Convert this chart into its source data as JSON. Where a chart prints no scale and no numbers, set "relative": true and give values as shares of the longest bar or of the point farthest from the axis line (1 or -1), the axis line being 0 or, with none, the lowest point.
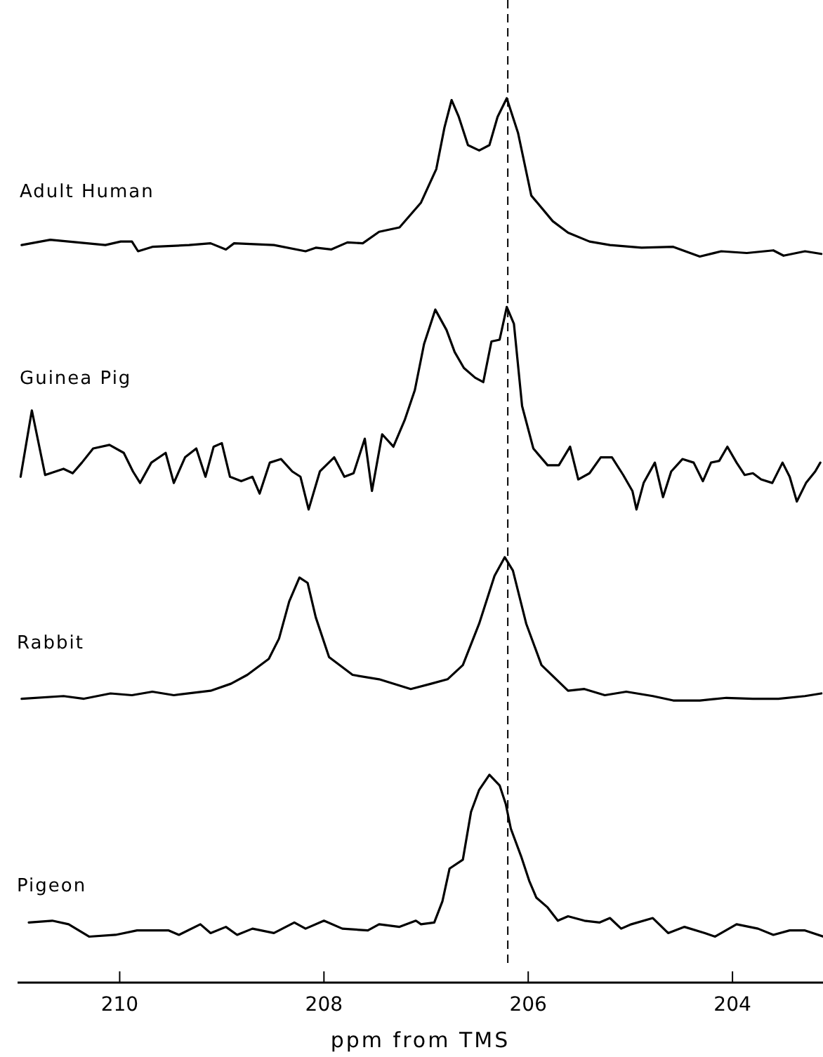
{
  "chart_data": {
    "type": "line",
    "relative": true,
    "xlim": [
      211.0,
      203.1
    ],
    "xticks": [
      210,
      208,
      206,
      204
    ],
    "xlabel": "ppm from TMS",
    "line_style": "solid",
    "marker": "none",
    "series": [
      {
        "name": "Adult Human",
        "color": "#000000",
        "x": [
          210.96,
          210.68,
          210.14,
          209.99,
          209.88,
          209.82,
          209.68,
          209.32,
          209.11,
          208.96,
          208.88,
          208.49,
          208.18,
          208.08,
          207.93,
          207.77,
          207.62,
          207.46,
          207.26,
          207.05,
          206.9,
          206.82,
          206.75,
          206.68,
          206.59,
          206.48,
          206.38,
          206.3,
          206.21,
          206.1,
          205.97,
          205.76,
          205.61,
          205.4,
          205.2,
          204.89,
          204.58,
          204.32,
          204.11,
          203.86,
          203.6,
          203.5,
          203.29,
          203.13
        ],
        "values": [
          0.834,
          0.84,
          0.834,
          0.838,
          0.838,
          0.827,
          0.832,
          0.834,
          0.836,
          0.829,
          0.836,
          0.834,
          0.827,
          0.831,
          0.829,
          0.837,
          0.836,
          0.849,
          0.854,
          0.882,
          0.92,
          0.967,
          0.998,
          0.979,
          0.947,
          0.941,
          0.947,
          0.979,
          1,
          0.961,
          0.89,
          0.861,
          0.848,
          0.838,
          0.834,
          0.831,
          0.832,
          0.821,
          0.827,
          0.825,
          0.828,
          0.822,
          0.827,
          0.824
        ]
      },
      {
        "name": "Guinea Pig",
        "color": "#000000",
        "x": [
          210.97,
          210.86,
          210.73,
          210.55,
          210.46,
          210.37,
          210.26,
          210.1,
          209.96,
          209.87,
          209.8,
          209.69,
          209.55,
          209.47,
          209.36,
          209.25,
          209.16,
          209.08,
          209.0,
          208.92,
          208.81,
          208.7,
          208.63,
          208.53,
          208.42,
          208.31,
          208.23,
          208.15,
          208.04,
          207.9,
          207.8,
          207.71,
          207.6,
          207.53,
          207.43,
          207.32,
          207.21,
          207.11,
          207.02,
          206.91,
          206.8,
          206.72,
          206.63,
          206.52,
          206.44,
          206.36,
          206.28,
          206.21,
          206.14,
          206.06,
          205.95,
          205.81,
          205.7,
          205.59,
          205.51,
          205.4,
          205.29,
          205.18,
          205.07,
          204.98,
          204.94,
          204.87,
          204.76,
          204.68,
          204.6,
          204.49,
          204.38,
          204.29,
          204.21,
          204.13,
          204.05,
          203.96,
          203.88,
          203.8,
          203.72,
          203.61,
          203.51,
          203.44,
          203.37,
          203.28,
          203.19,
          203.14
        ],
        "values": [
          0.572,
          0.647,
          0.574,
          0.581,
          0.576,
          0.588,
          0.604,
          0.608,
          0.599,
          0.578,
          0.565,
          0.588,
          0.599,
          0.565,
          0.594,
          0.604,
          0.572,
          0.606,
          0.61,
          0.572,
          0.567,
          0.572,
          0.553,
          0.588,
          0.592,
          0.578,
          0.572,
          0.535,
          0.578,
          0.594,
          0.572,
          0.576,
          0.615,
          0.556,
          0.62,
          0.606,
          0.636,
          0.67,
          0.722,
          0.761,
          0.738,
          0.713,
          0.695,
          0.684,
          0.679,
          0.725,
          0.727,
          0.764,
          0.745,
          0.652,
          0.604,
          0.585,
          0.585,
          0.606,
          0.569,
          0.576,
          0.594,
          0.594,
          0.574,
          0.556,
          0.535,
          0.565,
          0.588,
          0.549,
          0.578,
          0.592,
          0.588,
          0.567,
          0.588,
          0.59,
          0.606,
          0.588,
          0.574,
          0.576,
          0.569,
          0.565,
          0.588,
          0.572,
          0.544,
          0.565,
          0.578,
          0.588
        ]
      },
      {
        "name": "Rabbit",
        "color": "#000000",
        "x": [
          210.96,
          210.55,
          210.35,
          210.09,
          209.88,
          209.68,
          209.47,
          209.11,
          208.91,
          208.75,
          208.54,
          208.44,
          208.34,
          208.24,
          208.16,
          208.08,
          207.95,
          207.72,
          207.46,
          207.15,
          206.95,
          206.79,
          206.64,
          206.48,
          206.33,
          206.23,
          206.15,
          206.02,
          205.87,
          205.61,
          205.45,
          205.25,
          205.04,
          204.78,
          204.58,
          204.32,
          204.06,
          203.8,
          203.55,
          203.29,
          203.13
        ],
        "values": [
          0.321,
          0.324,
          0.321,
          0.327,
          0.325,
          0.329,
          0.325,
          0.33,
          0.338,
          0.348,
          0.366,
          0.389,
          0.431,
          0.458,
          0.452,
          0.413,
          0.368,
          0.348,
          0.343,
          0.332,
          0.338,
          0.343,
          0.359,
          0.406,
          0.46,
          0.481,
          0.466,
          0.406,
          0.359,
          0.33,
          0.332,
          0.325,
          0.329,
          0.324,
          0.319,
          0.319,
          0.322,
          0.321,
          0.321,
          0.324,
          0.327
        ]
      },
      {
        "name": "Pigeon",
        "color": "#000000",
        "x": [
          210.89,
          210.66,
          210.5,
          210.3,
          210.04,
          209.83,
          209.52,
          209.42,
          209.21,
          209.11,
          208.96,
          208.85,
          208.7,
          208.49,
          208.29,
          208.18,
          208.0,
          207.82,
          207.57,
          207.46,
          207.26,
          207.1,
          207.05,
          206.92,
          206.84,
          206.77,
          206.64,
          206.56,
          206.48,
          206.38,
          206.28,
          206.22,
          206.17,
          206.07,
          205.99,
          205.92,
          205.81,
          205.71,
          205.61,
          205.45,
          205.3,
          205.2,
          205.09,
          204.99,
          204.78,
          204.63,
          204.47,
          204.27,
          204.17,
          203.96,
          203.75,
          203.6,
          203.44,
          203.29,
          203.11
        ],
        "values": [
          0.068,
          0.07,
          0.066,
          0.052,
          0.054,
          0.059,
          0.059,
          0.054,
          0.066,
          0.056,
          0.063,
          0.054,
          0.061,
          0.056,
          0.068,
          0.061,
          0.07,
          0.061,
          0.059,
          0.066,
          0.063,
          0.07,
          0.066,
          0.068,
          0.092,
          0.129,
          0.139,
          0.193,
          0.218,
          0.235,
          0.223,
          0.202,
          0.174,
          0.143,
          0.115,
          0.096,
          0.085,
          0.07,
          0.075,
          0.07,
          0.068,
          0.073,
          0.061,
          0.066,
          0.073,
          0.056,
          0.063,
          0.056,
          0.052,
          0.066,
          0.061,
          0.054,
          0.059,
          0.059,
          0.052
        ]
      }
    ],
    "ref_lines": [
      {
        "axis": "x",
        "value": 206.2,
        "line_style": "dashed"
      }
    ]
  }
}
